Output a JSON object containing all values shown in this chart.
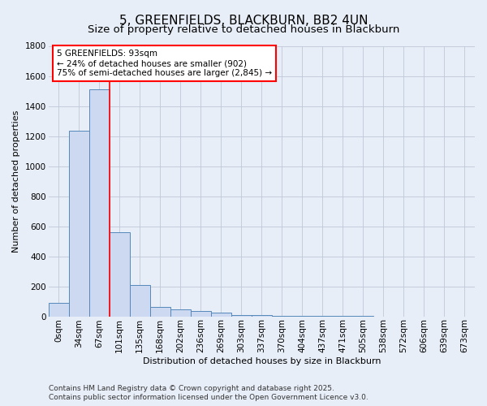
{
  "title": "5, GREENFIELDS, BLACKBURN, BB2 4UN",
  "subtitle": "Size of property relative to detached houses in Blackburn",
  "xlabel": "Distribution of detached houses by size in Blackburn",
  "ylabel": "Number of detached properties",
  "footer_line1": "Contains HM Land Registry data © Crown copyright and database right 2025.",
  "footer_line2": "Contains public sector information licensed under the Open Government Licence v3.0.",
  "annotation_line1": "5 GREENFIELDS: 93sqm",
  "annotation_line2": "← 24% of detached houses are smaller (902)",
  "annotation_line3": "75% of semi-detached houses are larger (2,845) →",
  "bar_labels": [
    "0sqm",
    "34sqm",
    "67sqm",
    "101sqm",
    "135sqm",
    "168sqm",
    "202sqm",
    "236sqm",
    "269sqm",
    "303sqm",
    "337sqm",
    "370sqm",
    "404sqm",
    "437sqm",
    "471sqm",
    "505sqm",
    "538sqm",
    "572sqm",
    "606sqm",
    "639sqm",
    "673sqm"
  ],
  "bar_values": [
    90,
    1235,
    1510,
    560,
    210,
    65,
    45,
    35,
    25,
    10,
    8,
    5,
    3,
    2,
    1,
    1,
    0,
    0,
    0,
    0,
    0
  ],
  "bar_color": "#ccd9f0",
  "bar_edge_color": "#5588bb",
  "ylim": [
    0,
    1800
  ],
  "yticks": [
    0,
    200,
    400,
    600,
    800,
    1000,
    1200,
    1400,
    1600,
    1800
  ],
  "background_color": "#e8eef8",
  "grid_color": "#c0c8d8",
  "title_fontsize": 11,
  "subtitle_fontsize": 9.5,
  "axis_label_fontsize": 8,
  "tick_fontsize": 7.5,
  "footer_fontsize": 6.5,
  "annotation_fontsize": 7.5
}
